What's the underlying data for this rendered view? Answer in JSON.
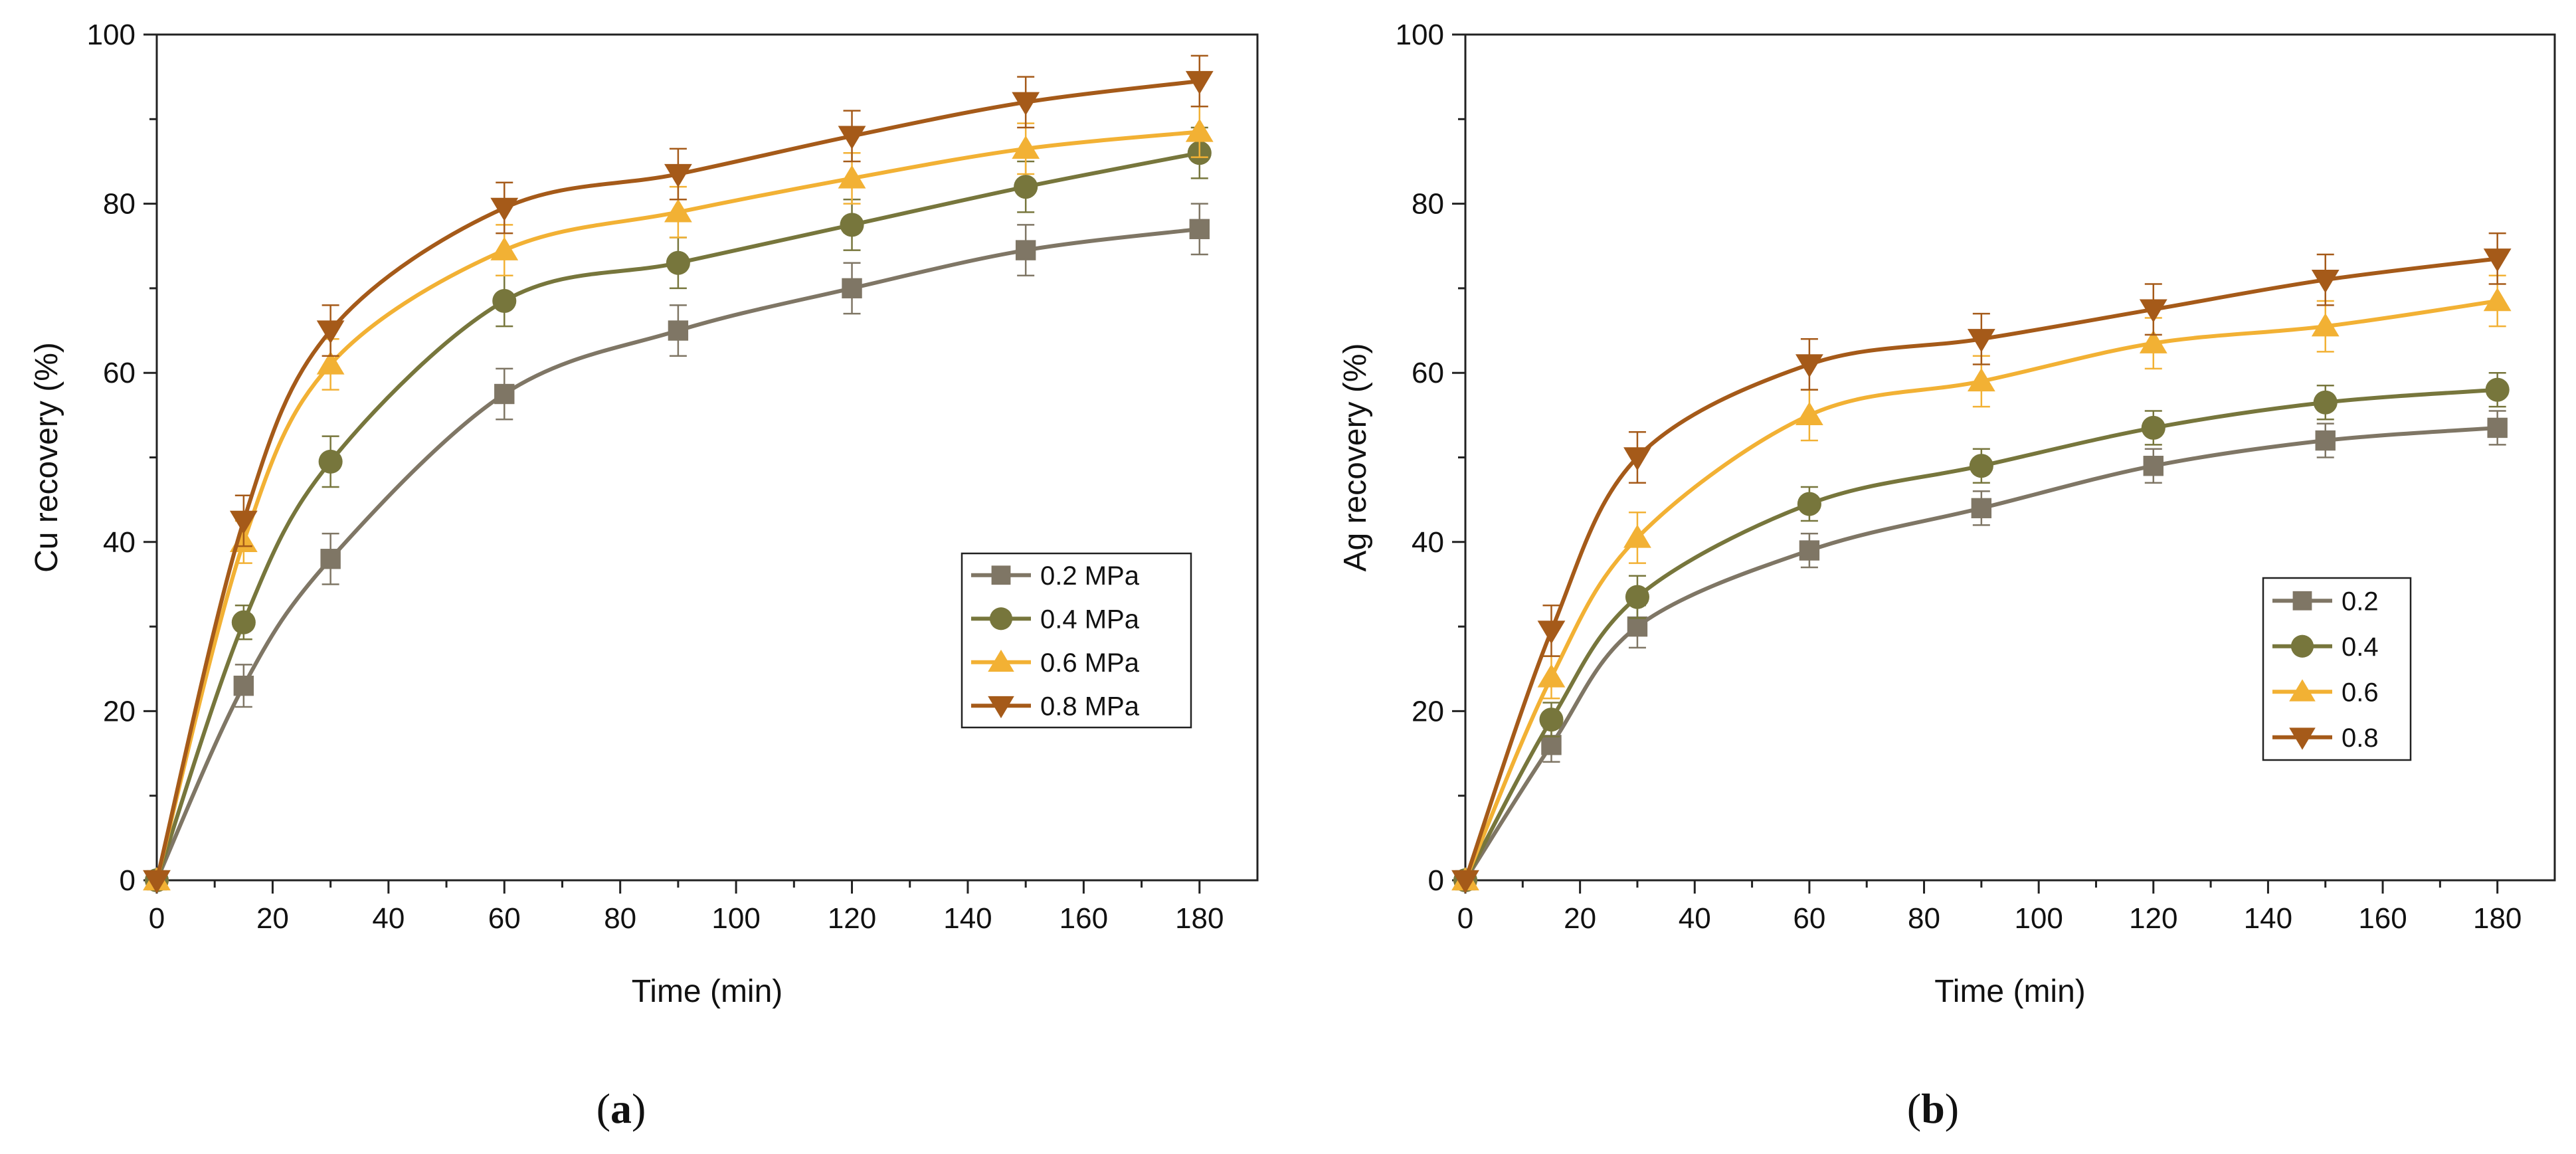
{
  "chart_data": [
    {
      "type": "line",
      "panel_label": "a",
      "xlabel": "Time (min)",
      "ylabel": "Cu recovery (%)",
      "xlim": [
        0,
        190
      ],
      "ylim": [
        0,
        100
      ],
      "xticks": [
        0,
        20,
        40,
        60,
        80,
        100,
        120,
        140,
        160,
        180
      ],
      "yticks": [
        0,
        20,
        40,
        60,
        80,
        100
      ],
      "legend_position": "center-right",
      "x": [
        0,
        15,
        30,
        60,
        90,
        120,
        150,
        180
      ],
      "series": [
        {
          "name": "0.2 MPa",
          "marker": "square",
          "color": "#7f7665",
          "values": [
            0,
            23,
            38,
            57.5,
            65,
            70,
            74.5,
            77
          ],
          "errors": [
            0,
            2.5,
            3,
            3,
            3,
            3,
            3,
            3
          ]
        },
        {
          "name": "0.4 MPa",
          "marker": "circle",
          "color": "#77763c",
          "values": [
            0,
            30.5,
            49.5,
            68.5,
            73,
            77.5,
            82,
            86
          ],
          "errors": [
            0,
            2,
            3,
            3,
            3,
            3,
            3,
            3
          ]
        },
        {
          "name": "0.6 MPa",
          "marker": "triangle-up",
          "color": "#f2b134",
          "values": [
            0,
            40,
            61,
            74.5,
            79,
            83,
            86.5,
            88.5
          ],
          "errors": [
            0,
            2.5,
            3,
            3,
            3,
            3,
            3,
            3
          ]
        },
        {
          "name": "0.8 MPa",
          "marker": "triangle-down",
          "color": "#a55a19",
          "values": [
            0,
            42.5,
            65,
            79.5,
            83.5,
            88,
            92,
            94.5
          ],
          "errors": [
            0,
            3,
            3,
            3,
            3,
            3,
            3,
            3
          ]
        }
      ]
    },
    {
      "type": "line",
      "panel_label": "b",
      "xlabel": "Time (min)",
      "ylabel": "Ag recovery (%)",
      "xlim": [
        0,
        190
      ],
      "ylim": [
        0,
        100
      ],
      "xticks": [
        0,
        20,
        40,
        60,
        80,
        100,
        120,
        140,
        160,
        180
      ],
      "yticks": [
        0,
        20,
        40,
        60,
        80,
        100
      ],
      "legend_position": "center-right",
      "x": [
        0,
        15,
        30,
        60,
        90,
        120,
        150,
        180
      ],
      "series": [
        {
          "name": "0.2",
          "marker": "square",
          "color": "#7f7665",
          "values": [
            0,
            16,
            30,
            39,
            44,
            49,
            52,
            53.5
          ],
          "errors": [
            0,
            2,
            2.5,
            2,
            2,
            2,
            2,
            2
          ]
        },
        {
          "name": "0.4",
          "marker": "circle",
          "color": "#77763c",
          "values": [
            0,
            19,
            33.5,
            44.5,
            49,
            53.5,
            56.5,
            58
          ],
          "errors": [
            0,
            2,
            2.5,
            2,
            2,
            2,
            2,
            2
          ]
        },
        {
          "name": "0.6",
          "marker": "triangle-up",
          "color": "#f2b134",
          "values": [
            0,
            24,
            40.5,
            55,
            59,
            63.5,
            65.5,
            68.5
          ],
          "errors": [
            0,
            2.5,
            3,
            3,
            3,
            3,
            3,
            3
          ]
        },
        {
          "name": "0.8",
          "marker": "triangle-down",
          "color": "#a55a19",
          "values": [
            0,
            29.5,
            50,
            61,
            64,
            67.5,
            71,
            73.5
          ],
          "errors": [
            0,
            3,
            3,
            3,
            3,
            3,
            3,
            3
          ]
        }
      ]
    }
  ]
}
